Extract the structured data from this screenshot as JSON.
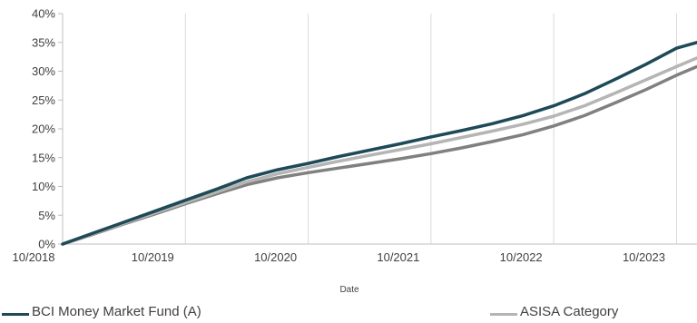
{
  "chart_data": {
    "type": "line",
    "title": "",
    "xlabel": "Date",
    "ylabel": "",
    "x_tick_labels": [
      "10/2018",
      "10/2019",
      "10/2020",
      "10/2021",
      "10/2022",
      "10/2023"
    ],
    "y_tick_labels": [
      "0%",
      "5%",
      "10%",
      "15%",
      "20%",
      "25%",
      "30%",
      "35%",
      "40%"
    ],
    "xlim": [
      "2018-10",
      "2023-12"
    ],
    "ylim": [
      0,
      40
    ],
    "y_unit": "%",
    "grid": "vertical",
    "legend_position": "bottom",
    "x": [
      "2018-10",
      "2019-01",
      "2019-04",
      "2019-07",
      "2019-10",
      "2020-01",
      "2020-04",
      "2020-07",
      "2020-10",
      "2021-01",
      "2021-04",
      "2021-07",
      "2021-10",
      "2022-01",
      "2022-04",
      "2022-07",
      "2022-10",
      "2023-01",
      "2023-04",
      "2023-07",
      "2023-10",
      "2023-12"
    ],
    "series": [
      {
        "name": "",
        "color": "#808080",
        "values": [
          0,
          1.7,
          3.5,
          5.2,
          7.0,
          8.7,
          10.3,
          11.5,
          12.4,
          13.2,
          14.0,
          14.8,
          15.7,
          16.7,
          17.8,
          19.0,
          20.5,
          22.3,
          24.5,
          26.8,
          29.3,
          30.8
        ]
      },
      {
        "name": "ASISA Category",
        "color": "#b5b5b5",
        "values": [
          0,
          1.8,
          3.6,
          5.4,
          7.2,
          9.0,
          10.8,
          12.2,
          13.3,
          14.4,
          15.4,
          16.4,
          17.4,
          18.5,
          19.6,
          20.8,
          22.2,
          24.0,
          26.2,
          28.5,
          30.8,
          32.3
        ]
      },
      {
        "name": "BCI Money Market Fund (A)",
        "color": "#1e4a57",
        "values": [
          0,
          1.9,
          3.8,
          5.7,
          7.6,
          9.5,
          11.5,
          12.9,
          14.0,
          15.2,
          16.3,
          17.4,
          18.6,
          19.7,
          20.9,
          22.3,
          24.0,
          26.1,
          28.6,
          31.2,
          34.0,
          35.0
        ]
      }
    ]
  }
}
